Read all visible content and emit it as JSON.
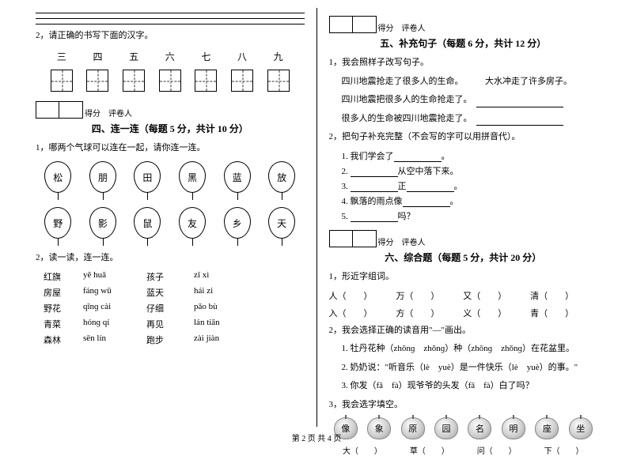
{
  "left": {
    "q2": "2，请正确的书写下面的汉字。",
    "chars": [
      "三",
      "四",
      "五",
      "六",
      "七",
      "八",
      "九"
    ],
    "score_label": "得分",
    "grader_label": "评卷人",
    "section4_title": "四、连一连（每题 5 分，共计 10 分）",
    "q4_1": "1，哪两个气球可以连在一起，请你连一连。",
    "balloons_top": [
      "松",
      "朋",
      "田",
      "黑",
      "蓝",
      "放"
    ],
    "balloons_bot": [
      "野",
      "影",
      "鼠",
      "友",
      "乡",
      "天"
    ],
    "q4_2": "2，读一读，连一连。",
    "pinyin_rows": [
      {
        "zh1": "红旗",
        "py1": "yě huā",
        "zh2": "孩子",
        "py2": "zǐ xì"
      },
      {
        "zh1": "房屋",
        "py1": "fánɡ wū",
        "zh2": "蓝天",
        "py2": "hái zi"
      },
      {
        "zh1": "野花",
        "py1": "qīnɡ cài",
        "zh2": "仔细",
        "py2": "pǎo bù"
      },
      {
        "zh1": "青菜",
        "py1": "hónɡ qí",
        "zh2": "再见",
        "py2": "lán tiān"
      },
      {
        "zh1": "森林",
        "py1": "sēn lín",
        "zh2": "跑步",
        "py2": "zài jiàn"
      }
    ]
  },
  "right": {
    "score_label": "得分",
    "grader_label": "评卷人",
    "section5_title": "五、补充句子（每题 6 分，共计 12 分）",
    "q5_1": "1，我会照样子改写句子。",
    "q5_1_line1a": "四川地震抢走了很多人的生命。",
    "q5_1_line1b": "大水冲走了许多房子。",
    "q5_1_line2": "四川地震把很多人的生命抢走了。",
    "q5_1_line3": "很多人的生命被四川地震抢走了。",
    "q5_2": "2，把句子补充完整（不会写的字可以用拼音代）。",
    "q5_2_items": [
      {
        "pre": "1. 我们学会了",
        "mid": "",
        "post": "。"
      },
      {
        "pre": "2. ",
        "mid": "",
        "post": "从空中落下来。"
      },
      {
        "pre": "3. ",
        "mid": "正",
        "post": "。"
      },
      {
        "pre": "4. 飘落的雨点像",
        "mid": "",
        "post": "。"
      },
      {
        "pre": "5. ",
        "mid": "",
        "post": "吗？"
      }
    ],
    "section6_title": "六、综合题（每题 5 分，共计 20 分）",
    "q6_1": "1，形近字组词。",
    "zuci": [
      [
        "人（　　）",
        "万（　　）",
        "又（　　）",
        "清（　　）"
      ],
      [
        "入（　　）",
        "方（　　）",
        "义（　　）",
        "青（　　）"
      ]
    ],
    "q6_2": "2，我会选择正确的读音用\"—\"画出。",
    "q6_2_items": [
      "1. 牡丹花种（zhōnɡ　zhǒnɡ）种（zhōnɡ　zhǒnɡ）在花盆里。",
      "2. 奶奶说：\"听音乐（lè　yuè）是一件快乐（lè　yuè）的事。\"",
      "3. 你发（fā　fà）现爷爷的头发（fā　fà）白了吗？"
    ],
    "q6_3": "3，我会选字填空。",
    "apples": [
      "像",
      "象",
      "原",
      "园",
      "名",
      "明",
      "座",
      "坐"
    ],
    "paren_row": [
      "大（　　）",
      "草（　　）",
      "问（　　）",
      "下（　　）"
    ]
  },
  "footer": "第 2 页 共 4 页"
}
